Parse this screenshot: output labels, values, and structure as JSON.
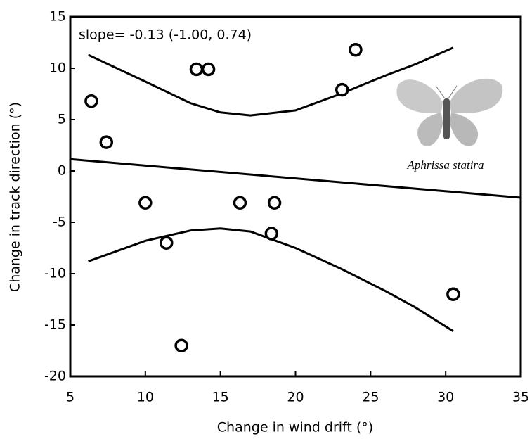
{
  "chart_data": {
    "type": "scatter",
    "x_label": "Change in wind drift (°)",
    "y_label": "Change in track direction (°)",
    "annotation": "slope= -0.13 (-1.00, 0.74)",
    "species": "Aphrissa statira",
    "xlim": [
      5,
      35
    ],
    "ylim": [
      -20,
      15
    ],
    "xticks": [
      5,
      10,
      15,
      20,
      25,
      30,
      35
    ],
    "yticks": [
      -20,
      -15,
      -10,
      -5,
      0,
      5,
      10,
      15
    ],
    "color": "#000000",
    "x": [
      6.4,
      7.4,
      13.4,
      14.2,
      23.1,
      24.0,
      10.0,
      16.3,
      18.6,
      18.4,
      11.4,
      12.4,
      30.5
    ],
    "values": [
      6.8,
      2.8,
      9.9,
      9.9,
      7.9,
      11.8,
      -3.1,
      -3.1,
      -3.1,
      -6.1,
      -7.0,
      -17.0,
      -12.0
    ],
    "lines": [
      {
        "x": [
          5,
          35
        ],
        "values": [
          1.15,
          -2.6
        ]
      },
      {
        "x": [
          6.2,
          10,
          13,
          15,
          17,
          20,
          23,
          26,
          28,
          30.5
        ],
        "values": [
          11.3,
          8.7,
          6.6,
          5.7,
          5.4,
          5.9,
          7.5,
          9.3,
          10.4,
          12.0
        ]
      },
      {
        "x": [
          6.2,
          10,
          13,
          15,
          17,
          20,
          23,
          26,
          28,
          30.5
        ],
        "values": [
          -8.8,
          -6.8,
          -5.8,
          -5.6,
          -5.9,
          -7.5,
          -9.5,
          -11.7,
          -13.3,
          -15.6
        ]
      }
    ]
  }
}
